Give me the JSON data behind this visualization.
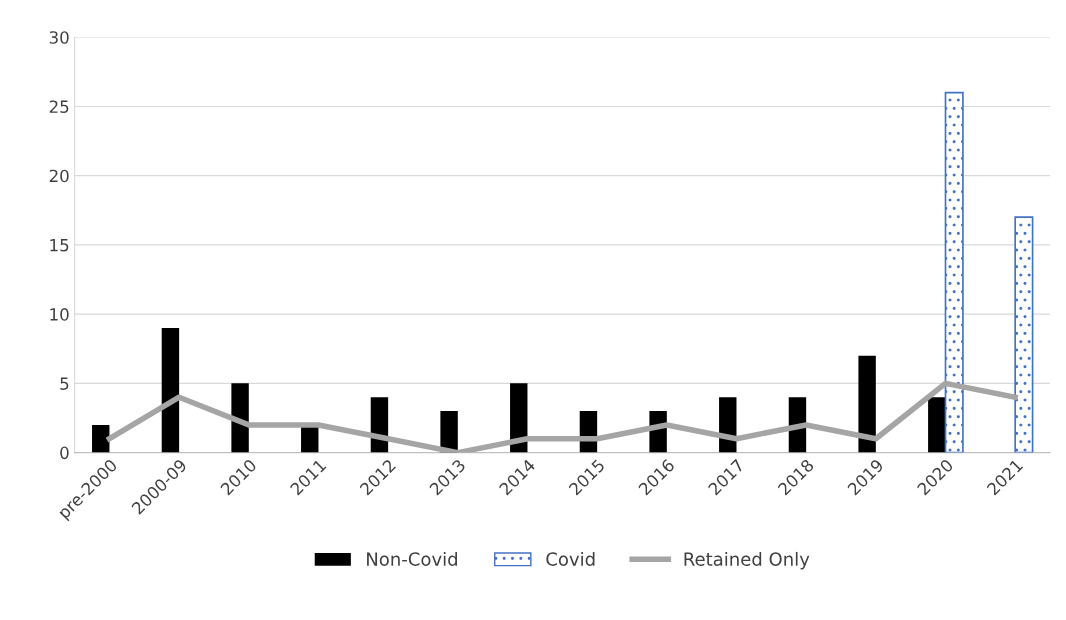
{
  "chart_data": {
    "type": "bar",
    "categories": [
      "pre-2000",
      "2000-09",
      "2010",
      "2011",
      "2012",
      "2013",
      "2014",
      "2015",
      "2016",
      "2017",
      "2018",
      "2019",
      "2020",
      "2021"
    ],
    "series": [
      {
        "name": "Non-Covid",
        "color": "#000000",
        "values": [
          2,
          9,
          5,
          2,
          4,
          3,
          5,
          3,
          3,
          4,
          4,
          7,
          4,
          null
        ]
      },
      {
        "name": "Covid",
        "color": "#4472c4",
        "values": [
          null,
          null,
          null,
          null,
          null,
          null,
          null,
          null,
          null,
          null,
          null,
          null,
          26,
          17
        ]
      },
      {
        "name": "Retained Only",
        "type": "line",
        "color": "#a5a5a5",
        "values": [
          1,
          4,
          2,
          2,
          1,
          0,
          1,
          1,
          2,
          1,
          2,
          1,
          5,
          4
        ]
      }
    ],
    "ylim": [
      0,
      30
    ],
    "yticks": [
      0,
      5,
      10,
      15,
      20,
      25,
      30
    ],
    "grid": "y",
    "legend": "bottom"
  }
}
